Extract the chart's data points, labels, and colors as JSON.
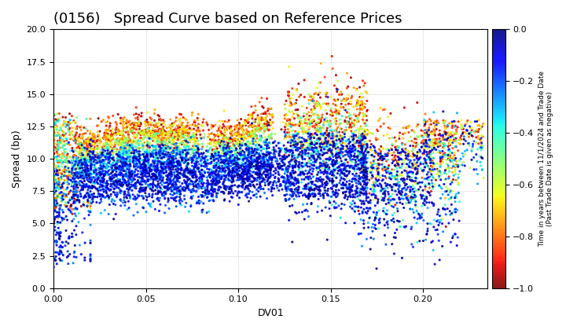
{
  "title": "(0156)   Spread Curve based on Reference Prices",
  "xlabel": "DV01",
  "ylabel": "Spread (bp)",
  "xlim": [
    0.0,
    0.235
  ],
  "ylim": [
    0.0,
    20.0
  ],
  "yticks": [
    0.0,
    2.5,
    5.0,
    7.5,
    10.0,
    12.5,
    15.0,
    17.5,
    20.0
  ],
  "xticks": [
    0.0,
    0.05,
    0.1,
    0.15,
    0.2
  ],
  "cbar_label_line1": "Time in years between 11/1/2024 and Trade Date",
  "cbar_label_line2": "(Past Trade Date is given as negative)",
  "cmap": "jet_r",
  "clim": [
    -1.0,
    0.0
  ],
  "cticks": [
    0.0,
    -0.2,
    -0.4,
    -0.6,
    -0.8,
    -1.0
  ],
  "background_color": "#ffffff",
  "title_fontsize": 13,
  "grid_color": "#aaaaaa",
  "grid_style": ":"
}
